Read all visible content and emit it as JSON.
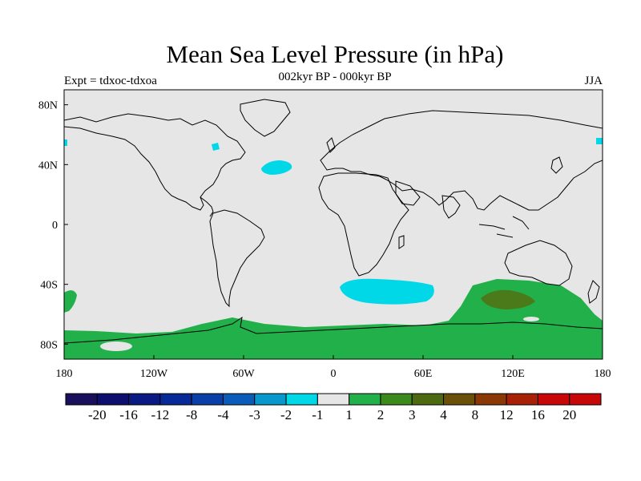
{
  "title": "Mean Sea Level Pressure (in hPa)",
  "subtitle": "002kyr BP - 000kyr BP",
  "left_label": "Expt = tdxoc-tdxoa",
  "right_label": "JJA",
  "colors": {
    "background_fill": "#e6e6e6",
    "land_outline": "#000000",
    "neg_weak": "#00d8e8",
    "pos_weak": "#22b04a",
    "pos_mid": "#4a7a1a"
  },
  "map": {
    "lon_ticks": [
      "180",
      "120W",
      "60W",
      "0",
      "60E",
      "120E",
      "180"
    ],
    "lat_ticks": [
      "80N",
      "40N",
      "0",
      "40S",
      "80S"
    ]
  },
  "colorbar": {
    "labels": [
      "-20",
      "-16",
      "-12",
      "-8",
      "-4",
      "-3",
      "-2",
      "-1",
      "1",
      "2",
      "3",
      "4",
      "8",
      "12",
      "16",
      "20"
    ],
    "colors": [
      "#1a0f5a",
      "#0d0f6e",
      "#0a1a82",
      "#082a96",
      "#0a3fa6",
      "#0a5cb8",
      "#0898cc",
      "#00d8e8",
      "#e6e6e6",
      "#22b04a",
      "#3c8a1c",
      "#4e6a10",
      "#6a5008",
      "#8a3806",
      "#a82006",
      "#c80808"
    ]
  }
}
